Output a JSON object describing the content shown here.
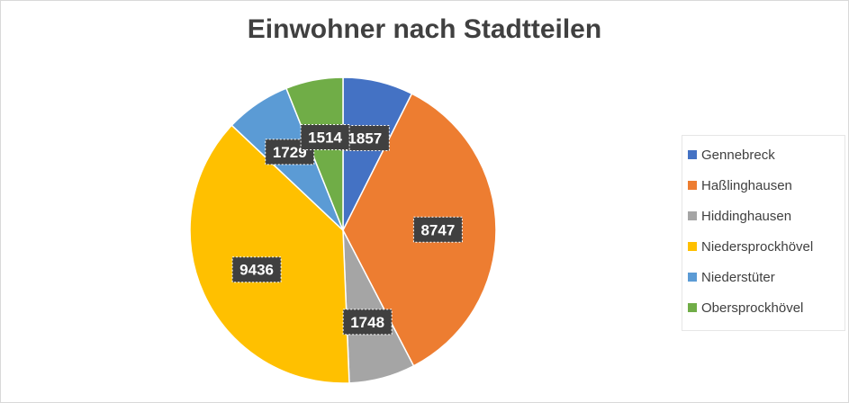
{
  "chart_data": {
    "type": "pie",
    "title": "Einwohner nach Stadtteilen",
    "slices": [
      {
        "name": "Gennebreck",
        "value": 1857,
        "color": "#4472C4"
      },
      {
        "name": "Haßlinghausen",
        "value": 8747,
        "color": "#ED7D31"
      },
      {
        "name": "Hiddinghausen",
        "value": 1748,
        "color": "#A5A5A5"
      },
      {
        "name": "Niedersprockhövel",
        "value": 9436,
        "color": "#FFC000"
      },
      {
        "name": "Niederstüter",
        "value": 1729,
        "color": "#5B9BD5"
      },
      {
        "name": "Obersprockhövel",
        "value": 1514,
        "color": "#70AD47"
      }
    ],
    "legend_position": "right",
    "data_labels": true
  }
}
